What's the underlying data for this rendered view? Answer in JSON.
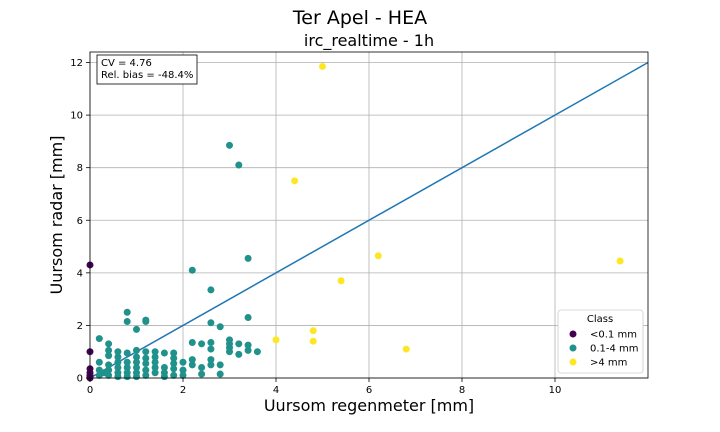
{
  "figure": {
    "suptitle": "Ter Apel - HEA"
  },
  "chart_data": {
    "type": "scatter",
    "title": "irc_realtime - 1h",
    "xlabel": "Uursom regenmeter [mm]",
    "ylabel": "Uursom radar [mm]",
    "xlim": [
      0,
      12
    ],
    "ylim": [
      0,
      12.4
    ],
    "xticks": [
      0,
      2,
      4,
      6,
      8,
      10
    ],
    "yticks": [
      0,
      2,
      4,
      6,
      8,
      10,
      12
    ],
    "grid": true,
    "annotation": {
      "lines": [
        "CV = 4.76",
        "Rel. bias = -48.4%"
      ],
      "position": "top-left"
    },
    "legend": {
      "title": "Class",
      "placement": "lower-right"
    },
    "reference_line": {
      "name": "1:1",
      "x": [
        0,
        12
      ],
      "y": [
        0,
        12
      ],
      "color": "#1f77b4"
    },
    "series": [
      {
        "name": "<0.1 mm",
        "color": "#440154",
        "points": [
          [
            0,
            4.3
          ],
          [
            0,
            1.0
          ],
          [
            0,
            0.35
          ],
          [
            0,
            0.2
          ],
          [
            0,
            0.1
          ],
          [
            0,
            0.05
          ],
          [
            0,
            0.0
          ]
        ]
      },
      {
        "name": "0.1-4 mm",
        "color": "#21918c",
        "points": [
          [
            3.0,
            8.85
          ],
          [
            3.2,
            8.1
          ],
          [
            2.2,
            4.1
          ],
          [
            3.4,
            4.55
          ],
          [
            2.6,
            3.35
          ],
          [
            0.8,
            2.5
          ],
          [
            0.8,
            2.15
          ],
          [
            1.2,
            2.2
          ],
          [
            1.2,
            2.15
          ],
          [
            1.0,
            1.85
          ],
          [
            2.6,
            2.1
          ],
          [
            2.8,
            1.95
          ],
          [
            3.4,
            2.3
          ],
          [
            0.2,
            1.5
          ],
          [
            3.0,
            1.45
          ],
          [
            3.0,
            1.3
          ],
          [
            3.0,
            1.15
          ],
          [
            3.0,
            1.0
          ],
          [
            3.2,
            1.3
          ],
          [
            3.2,
            0.9
          ],
          [
            3.4,
            1.25
          ],
          [
            3.4,
            1.05
          ],
          [
            3.6,
            1.0
          ],
          [
            2.2,
            1.35
          ],
          [
            2.4,
            1.3
          ],
          [
            2.6,
            1.35
          ],
          [
            2.6,
            1.1
          ],
          [
            2.2,
            0.7
          ],
          [
            2.6,
            0.7
          ],
          [
            2.6,
            0.5
          ],
          [
            2.8,
            0.5
          ],
          [
            2.0,
            0.6
          ],
          [
            2.2,
            0.5
          ],
          [
            2.4,
            0.4
          ],
          [
            2.4,
            0.15
          ],
          [
            2.8,
            0.15
          ],
          [
            2.0,
            0.3
          ],
          [
            2.0,
            0.1
          ],
          [
            0.2,
            0.6
          ],
          [
            0.4,
            1.3
          ],
          [
            0.4,
            1.05
          ],
          [
            0.4,
            0.85
          ],
          [
            0.4,
            0.5
          ],
          [
            0.4,
            0.3
          ],
          [
            0.4,
            0.1
          ],
          [
            0.6,
            1.0
          ],
          [
            0.6,
            0.8
          ],
          [
            0.6,
            0.6
          ],
          [
            0.6,
            0.4
          ],
          [
            0.6,
            0.2
          ],
          [
            0.8,
            0.95
          ],
          [
            0.8,
            0.6
          ],
          [
            0.8,
            0.4
          ],
          [
            0.8,
            0.2
          ],
          [
            0.8,
            0.05
          ],
          [
            1.0,
            1.05
          ],
          [
            1.0,
            0.8
          ],
          [
            1.0,
            0.6
          ],
          [
            1.0,
            0.4
          ],
          [
            1.0,
            0.2
          ],
          [
            1.2,
            1.0
          ],
          [
            1.2,
            0.75
          ],
          [
            1.2,
            0.55
          ],
          [
            1.2,
            0.3
          ],
          [
            1.2,
            0.1
          ],
          [
            1.4,
            1.0
          ],
          [
            1.4,
            0.8
          ],
          [
            1.4,
            0.6
          ],
          [
            1.4,
            0.4
          ],
          [
            1.4,
            0.2
          ],
          [
            1.6,
            0.95
          ],
          [
            1.6,
            0.4
          ],
          [
            1.6,
            0.2
          ],
          [
            1.8,
            0.95
          ],
          [
            1.8,
            0.75
          ],
          [
            1.8,
            0.55
          ],
          [
            1.8,
            0.35
          ],
          [
            1.8,
            0.1
          ],
          [
            0.2,
            0.3
          ],
          [
            0.2,
            0.1
          ],
          [
            0.3,
            0.2
          ],
          [
            0.6,
            0.05
          ],
          [
            1.0,
            0.05
          ],
          [
            1.6,
            0.05
          ]
        ]
      },
      {
        "name": ">4 mm",
        "color": "#fde725",
        "points": [
          [
            5.0,
            11.85
          ],
          [
            4.4,
            7.5
          ],
          [
            6.2,
            4.65
          ],
          [
            11.4,
            4.45
          ],
          [
            5.4,
            3.7
          ],
          [
            4.8,
            1.8
          ],
          [
            4.0,
            1.45
          ],
          [
            4.8,
            1.4
          ],
          [
            6.8,
            1.1
          ]
        ]
      }
    ]
  }
}
